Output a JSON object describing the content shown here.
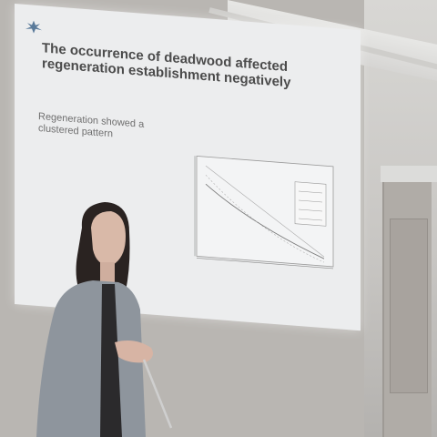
{
  "slide": {
    "title": "The occurrence of deadwood affected regeneration establishment negatively",
    "subtitle": "Regeneration showed a clustered pattern"
  },
  "colors": {
    "slide_background": "#ecedee",
    "slide_title": "#4b4b4b",
    "slide_subtitle": "#6f6f6f",
    "wall": "#b9b6b2",
    "jacket": "#8e959d",
    "hair": "#2a2321"
  },
  "icons": {
    "slide_logo": "university-logo-icon"
  }
}
